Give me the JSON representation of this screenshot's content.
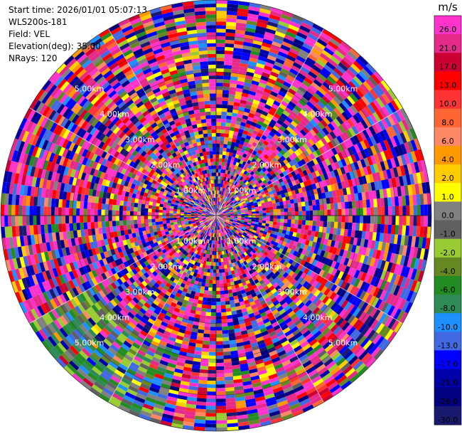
{
  "header": {
    "start_time": "Start time: 2026/01/01 05:07:13",
    "instrument": "WLS200s-181",
    "field": "Field: VEL",
    "elevation": "Elevation(deg): 35.00",
    "nrays": "NRays: 120"
  },
  "chart_data": {
    "type": "heatmap",
    "projection": "polar (PPI scan)",
    "field": "VEL",
    "n_rays": 120,
    "range_rings": [
      {
        "km": 1.0,
        "label": "1.00km"
      },
      {
        "km": 2.0,
        "label": "2.00km"
      },
      {
        "km": 3.0,
        "label": "3.00km"
      },
      {
        "km": 4.0,
        "label": "4.00km"
      },
      {
        "km": 5.0,
        "label": "5.00km"
      }
    ],
    "max_range_km": 6.0,
    "colorbar": {
      "unit": "m/s",
      "tick_labels": [
        "26.0",
        "21.0",
        "17.0",
        "13.0",
        "10.0",
        "8.0",
        "6.0",
        "4.0",
        "2.0",
        "1.0",
        "0.0",
        "-1.0",
        "-2.0",
        "-4.0",
        "-6.0",
        "-8.0",
        "-10.0",
        "-13.0",
        "-17.0",
        "-21.0",
        "-26.0",
        "-30.0"
      ],
      "colors": [
        "#ff33cc",
        "#e62a8a",
        "#cc0033",
        "#ff0000",
        "#ff3333",
        "#ff6633",
        "#ff8866",
        "#ff9900",
        "#ffcc00",
        "#ffff00",
        "#808080",
        "#606060",
        "#99cc33",
        "#668822",
        "#228b22",
        "#2e8b57",
        "#1e90ff",
        "#4169e1",
        "#0000ff",
        "#0000aa",
        "#000080",
        "#191970"
      ]
    },
    "notes": "Dense noisy velocity field; lower-left sector at outer ranges shows structured negative velocities (blue/green/gray) while the remainder is mostly random magenta/red/blue values."
  }
}
